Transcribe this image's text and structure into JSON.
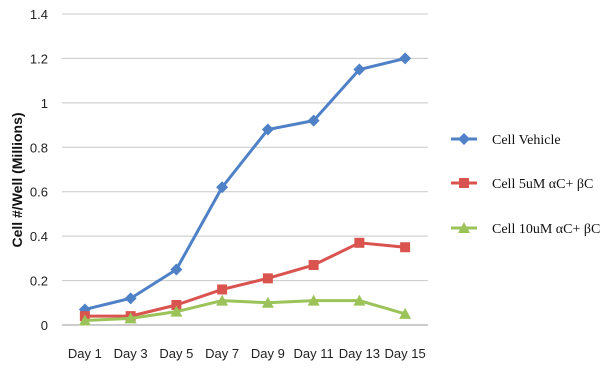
{
  "chart_data": {
    "type": "line",
    "categories": [
      "Day 1",
      "Day 3",
      "Day 5",
      "Day 7",
      "Day 9",
      "Day 11",
      "Day 13",
      "Day 15"
    ],
    "ylabel": "Cell #/Well (Millions)",
    "xlabel": "",
    "ylim": [
      0,
      1.4
    ],
    "yticks": [
      0,
      0.2,
      0.4,
      0.6,
      0.8,
      1,
      1.2,
      1.4
    ],
    "ytick_labels": [
      "0",
      "0.2",
      "0.4",
      "0.6",
      "0.8",
      "1",
      "1.2",
      "1.4"
    ],
    "grid": "horizontal",
    "legend_position": "right",
    "series": [
      {
        "name": "Cell Vehicle",
        "color": "#4f81c7",
        "marker": "diamond",
        "values": [
          0.07,
          0.12,
          0.25,
          0.62,
          0.88,
          0.92,
          1.15,
          1.2
        ]
      },
      {
        "name": "Cell 5uM αC+ βC",
        "color": "#d9534f",
        "marker": "square",
        "values": [
          0.04,
          0.04,
          0.09,
          0.16,
          0.21,
          0.27,
          0.37,
          0.35
        ]
      },
      {
        "name": "Cell 10uM αC+ βC",
        "color": "#9bc35a",
        "marker": "triangle",
        "values": [
          0.02,
          0.03,
          0.06,
          0.11,
          0.1,
          0.11,
          0.11,
          0.05
        ]
      }
    ]
  }
}
